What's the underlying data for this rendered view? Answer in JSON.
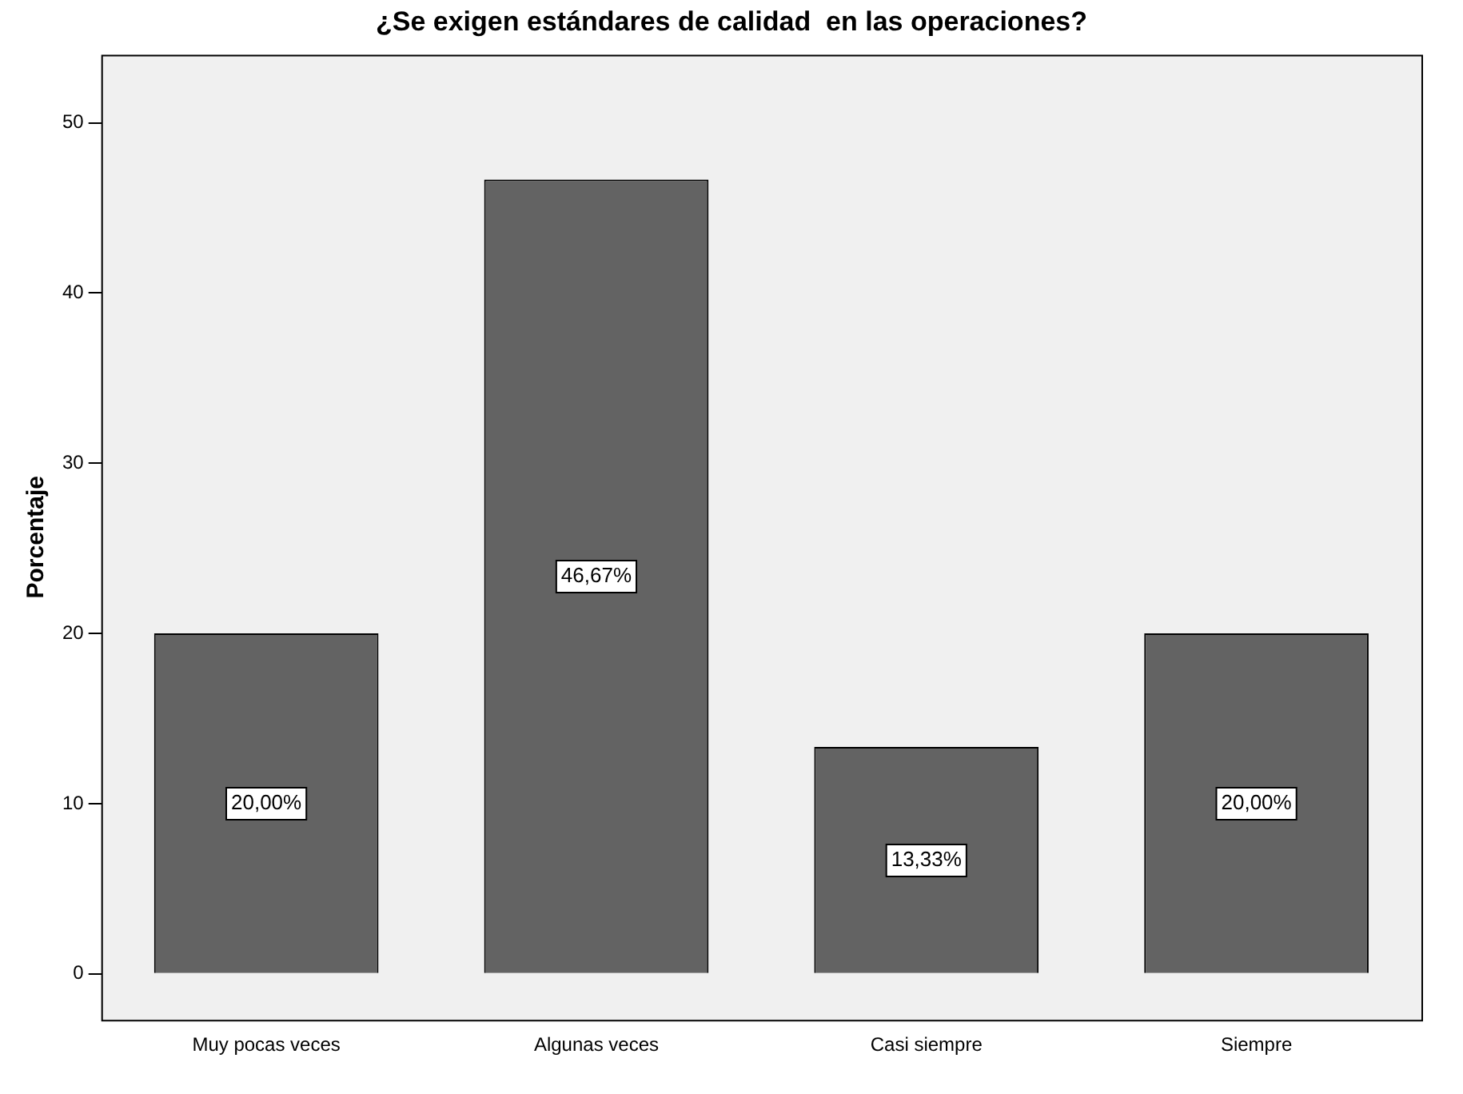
{
  "chart_data": {
    "type": "bar",
    "title": "¿Se exigen estándares de calidad  en las operaciones?",
    "ylabel": "Porcentaje",
    "categories": [
      "Muy pocas veces",
      "Algunas veces",
      "Casi siempre",
      "Siempre"
    ],
    "values": [
      20,
      46.67,
      13.33,
      20
    ],
    "value_labels": [
      "20,00%",
      "46,67%",
      "13,33%",
      "20,00%"
    ],
    "color": "#636363",
    "ylim": [
      -2.7,
      54
    ],
    "yticks": [
      0,
      10,
      20,
      30,
      40,
      50
    ],
    "grid": false,
    "legend": false
  }
}
